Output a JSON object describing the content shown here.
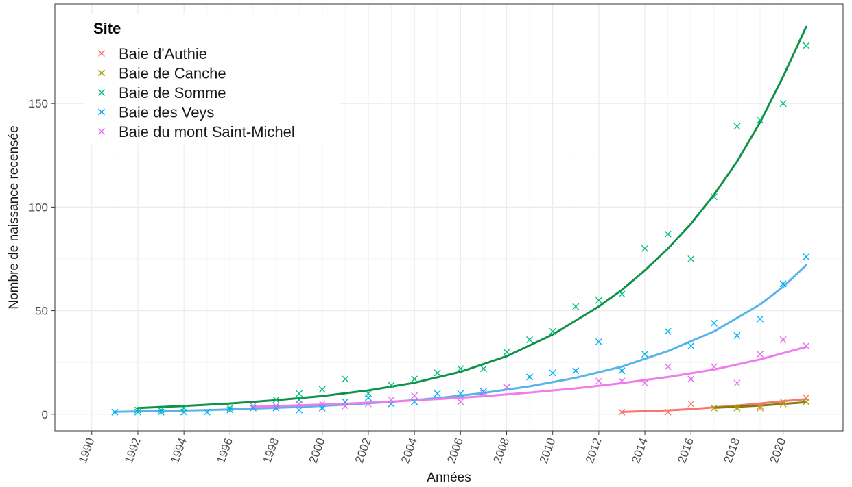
{
  "chart_data": {
    "type": "scatter",
    "title": "",
    "xlabel": "Années",
    "ylabel": "Nombre de naissance recensée",
    "xlim": [
      1988.4,
      2022.6
    ],
    "ylim": [
      -8,
      198
    ],
    "x_ticks": [
      1990,
      1992,
      1994,
      1996,
      1998,
      2000,
      2002,
      2004,
      2006,
      2008,
      2010,
      2012,
      2014,
      2016,
      2018,
      2020
    ],
    "x_tick_labels": [
      "1990",
      "1992",
      "1994",
      "1996",
      "1998",
      "2000",
      "2002",
      "2004",
      "2006",
      "2008",
      "2010",
      "2012",
      "2014",
      "2016",
      "2018",
      "2020"
    ],
    "y_ticks": [
      0,
      50,
      100,
      150
    ],
    "y_tick_labels": [
      "0",
      "50",
      "100",
      "150"
    ],
    "grid": true,
    "legend": {
      "title": "Site",
      "position": "top-left"
    },
    "series": [
      {
        "name": "Baie d'Authie",
        "color": "#F8766D",
        "fit_color": "#F8766D",
        "points": [
          [
            2013,
            1
          ],
          [
            2015,
            1
          ],
          [
            2016,
            5
          ],
          [
            2017,
            3
          ],
          [
            2018,
            3
          ],
          [
            2019,
            4
          ],
          [
            2020,
            6
          ],
          [
            2021,
            8
          ]
        ],
        "trend": [
          [
            2013,
            1.1
          ],
          [
            2014,
            1.5
          ],
          [
            2015,
            1.9
          ],
          [
            2016,
            2.5
          ],
          [
            2017,
            3.3
          ],
          [
            2018,
            4.2
          ],
          [
            2019,
            5.2
          ],
          [
            2020,
            6.3
          ],
          [
            2021,
            7.3
          ]
        ]
      },
      {
        "name": "Baie de Canche",
        "color": "#A3A500",
        "fit_color": "#7F7F00",
        "points": [
          [
            2017,
            3
          ],
          [
            2018,
            3
          ],
          [
            2019,
            3
          ],
          [
            2020,
            5
          ],
          [
            2021,
            6
          ]
        ],
        "trend": [
          [
            2017,
            3.1
          ],
          [
            2018,
            3.6
          ],
          [
            2019,
            4.2
          ],
          [
            2020,
            5.0
          ],
          [
            2021,
            5.8
          ]
        ]
      },
      {
        "name": "Baie de Somme",
        "color": "#00BF7D",
        "fit_color": "#0E9248",
        "points": [
          [
            1992,
            2
          ],
          [
            1993,
            2
          ],
          [
            1994,
            3
          ],
          [
            1996,
            3
          ],
          [
            1998,
            7
          ],
          [
            1999,
            10
          ],
          [
            1999,
            7
          ],
          [
            2000,
            12
          ],
          [
            2001,
            17
          ],
          [
            2002,
            10
          ],
          [
            2003,
            14
          ],
          [
            2004,
            17
          ],
          [
            2005,
            20
          ],
          [
            2006,
            22
          ],
          [
            2007,
            22
          ],
          [
            2008,
            30
          ],
          [
            2009,
            36
          ],
          [
            2010,
            40
          ],
          [
            2011,
            52
          ],
          [
            2012,
            55
          ],
          [
            2013,
            58
          ],
          [
            2014,
            80
          ],
          [
            2015,
            87
          ],
          [
            2016,
            75
          ],
          [
            2017,
            105
          ],
          [
            2018,
            139
          ],
          [
            2019,
            142
          ],
          [
            2020,
            150
          ],
          [
            2021,
            178
          ]
        ],
        "trend": [
          [
            1992,
            3.0
          ],
          [
            1994,
            4.0
          ],
          [
            1996,
            5.2
          ],
          [
            1998,
            6.8
          ],
          [
            2000,
            8.8
          ],
          [
            2002,
            11.5
          ],
          [
            2004,
            15.2
          ],
          [
            2006,
            20.5
          ],
          [
            2008,
            28.0
          ],
          [
            2010,
            38.5
          ],
          [
            2012,
            52.0
          ],
          [
            2013,
            60.0
          ],
          [
            2014,
            69.5
          ],
          [
            2015,
            80.0
          ],
          [
            2016,
            92.0
          ],
          [
            2017,
            106.0
          ],
          [
            2018,
            122.0
          ],
          [
            2019,
            141.0
          ],
          [
            2020,
            163.0
          ],
          [
            2021,
            187.0
          ]
        ]
      },
      {
        "name": "Baie des Veys",
        "color": "#00B0F6",
        "fit_color": "#56B4E9",
        "points": [
          [
            1991,
            1
          ],
          [
            1992,
            1
          ],
          [
            1993,
            1
          ],
          [
            1994,
            1
          ],
          [
            1995,
            1
          ],
          [
            1996,
            2
          ],
          [
            1997,
            3
          ],
          [
            1998,
            3
          ],
          [
            1999,
            2
          ],
          [
            2000,
            3
          ],
          [
            2001,
            6
          ],
          [
            2002,
            8
          ],
          [
            2003,
            5
          ],
          [
            2004,
            6
          ],
          [
            2005,
            10
          ],
          [
            2006,
            10
          ],
          [
            2007,
            11
          ],
          [
            2008,
            13
          ],
          [
            2009,
            18
          ],
          [
            2010,
            20
          ],
          [
            2011,
            21
          ],
          [
            2012,
            35
          ],
          [
            2013,
            21
          ],
          [
            2014,
            29
          ],
          [
            2015,
            40
          ],
          [
            2016,
            33
          ],
          [
            2017,
            44
          ],
          [
            2018,
            38
          ],
          [
            2019,
            46
          ],
          [
            2020,
            63
          ],
          [
            2021,
            76
          ]
        ],
        "trend": [
          [
            1991,
            1.2
          ],
          [
            1993,
            1.6
          ],
          [
            1995,
            2.0
          ],
          [
            1997,
            2.7
          ],
          [
            1999,
            3.5
          ],
          [
            2001,
            4.6
          ],
          [
            2003,
            6.0
          ],
          [
            2005,
            7.8
          ],
          [
            2007,
            10.3
          ],
          [
            2009,
            13.5
          ],
          [
            2011,
            17.6
          ],
          [
            2013,
            23.0
          ],
          [
            2015,
            30.5
          ],
          [
            2017,
            40.0
          ],
          [
            2019,
            53.0
          ],
          [
            2020,
            61.5
          ],
          [
            2021,
            72.0
          ]
        ]
      },
      {
        "name": "Baie du mont Saint-Michel",
        "color": "#E76BF3",
        "fit_color": "#F07CEB",
        "points": [
          [
            1997,
            4
          ],
          [
            1998,
            4
          ],
          [
            1999,
            5
          ],
          [
            2000,
            5
          ],
          [
            2001,
            4
          ],
          [
            2002,
            5
          ],
          [
            2003,
            7
          ],
          [
            2004,
            9
          ],
          [
            2006,
            6
          ],
          [
            2007,
            10
          ],
          [
            2008,
            13
          ],
          [
            2012,
            16
          ],
          [
            2013,
            16
          ],
          [
            2014,
            15
          ],
          [
            2015,
            23
          ],
          [
            2016,
            17
          ],
          [
            2017,
            23
          ],
          [
            2018,
            15
          ],
          [
            2019,
            29
          ],
          [
            2020,
            36
          ],
          [
            2021,
            33
          ]
        ],
        "trend": [
          [
            1997,
            3.6
          ],
          [
            1999,
            4.3
          ],
          [
            2001,
            5.1
          ],
          [
            2003,
            6.1
          ],
          [
            2005,
            7.3
          ],
          [
            2007,
            8.7
          ],
          [
            2009,
            10.5
          ],
          [
            2011,
            12.5
          ],
          [
            2013,
            15.0
          ],
          [
            2015,
            18.0
          ],
          [
            2017,
            21.6
          ],
          [
            2019,
            26.5
          ],
          [
            2020,
            29.5
          ],
          [
            2021,
            32.5
          ]
        ]
      }
    ]
  }
}
